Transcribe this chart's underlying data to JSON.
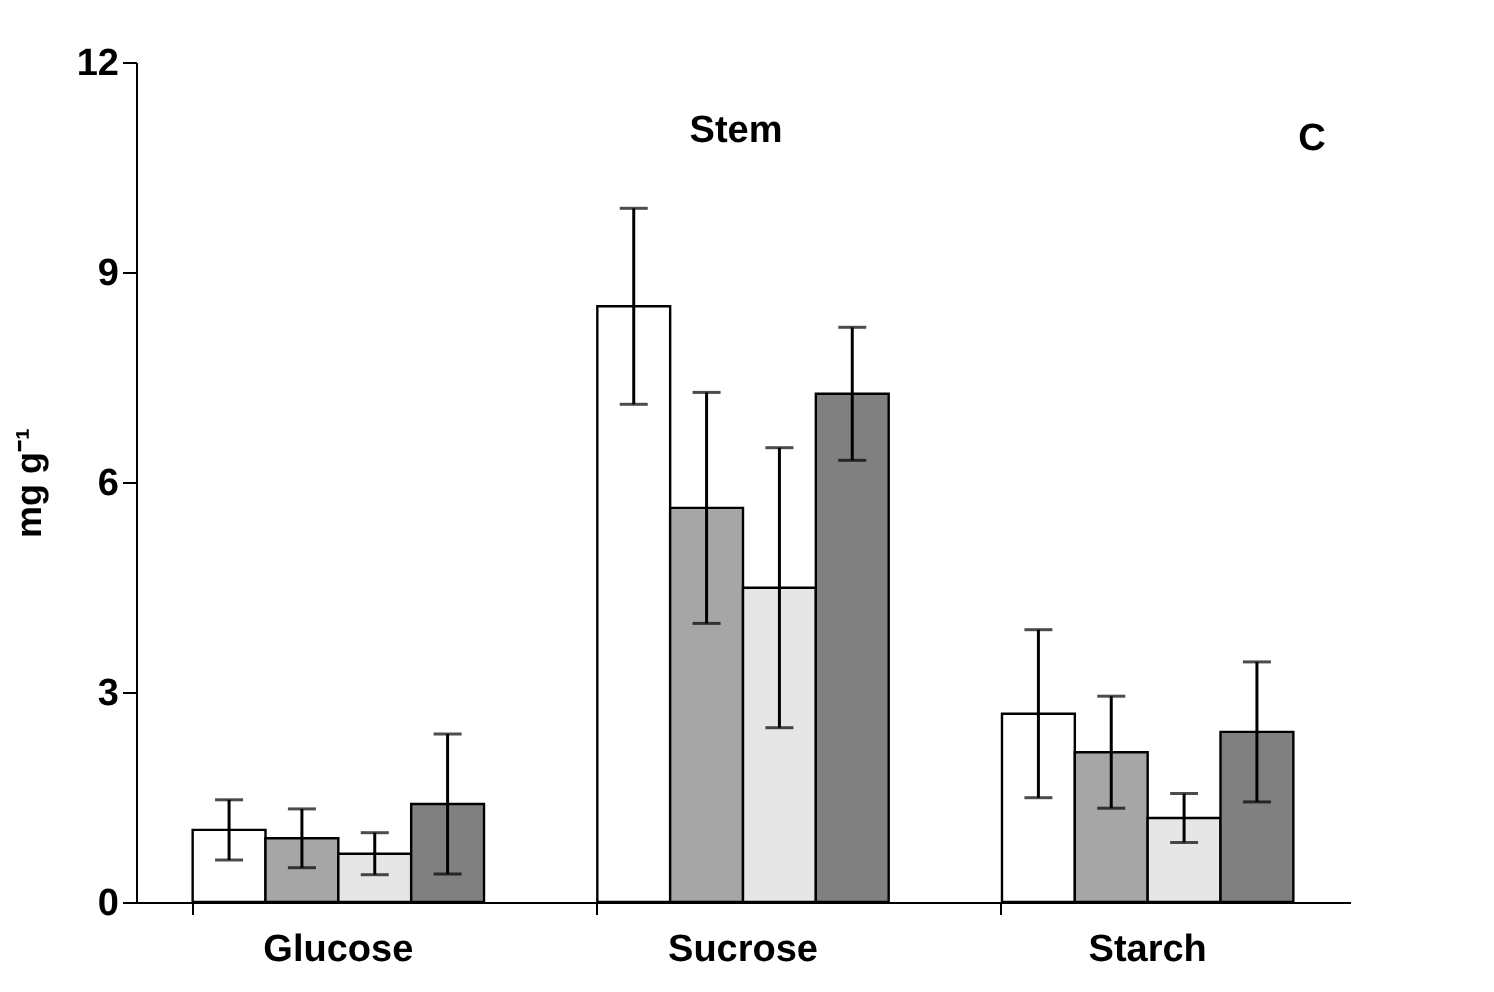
{
  "chart_data": {
    "type": "bar",
    "ylabel": "mg g⁻¹",
    "annotations": [
      "Stem",
      "C"
    ],
    "categories": [
      "Glucose",
      "Sucrose",
      "Starch"
    ],
    "series": [
      {
        "color": "#ffffff",
        "values": [
          1.03,
          8.51,
          2.69
        ],
        "errors": [
          0.43,
          1.4,
          1.2
        ]
      },
      {
        "color": "#a6a6a6",
        "values": [
          0.91,
          5.63,
          2.14
        ],
        "errors": [
          0.42,
          1.65,
          0.8
        ]
      },
      {
        "color": "#e6e6e6",
        "values": [
          0.69,
          4.49,
          1.2
        ],
        "errors": [
          0.3,
          2.0,
          0.35
        ]
      },
      {
        "color": "#808080",
        "values": [
          1.4,
          7.26,
          2.43
        ],
        "errors": [
          1.0,
          0.95,
          1.0
        ]
      }
    ],
    "ylim": [
      0,
      12
    ],
    "yticks": [
      0,
      3,
      6,
      9,
      12
    ],
    "grid": false,
    "legend": false
  }
}
